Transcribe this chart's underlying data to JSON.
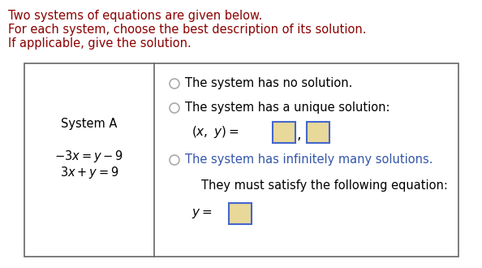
{
  "bg_color": "#ffffff",
  "header_color": "#8B0000",
  "header_lines": [
    "Two systems of equations are given below.",
    "For each system, choose the best description of its solution.",
    "If applicable, give the solution."
  ],
  "header_fontsize": 10.5,
  "system_label": "System A",
  "eq1": "$-3x=y-9$",
  "eq2": "$3x+y=9$",
  "eq_color": "#000000",
  "option1": "The system has no solution.",
  "option2": "The system has a unique solution:",
  "option3": "The system has infinitely many solutions.",
  "option3_color": "#3355aa",
  "option4_line1": "They must satisfy the following equation:",
  "radio_color": "#aaaaaa",
  "input_fill": "#e8d89a",
  "input_border": "#4466cc",
  "text_color": "#000000",
  "box_color": "#666666"
}
